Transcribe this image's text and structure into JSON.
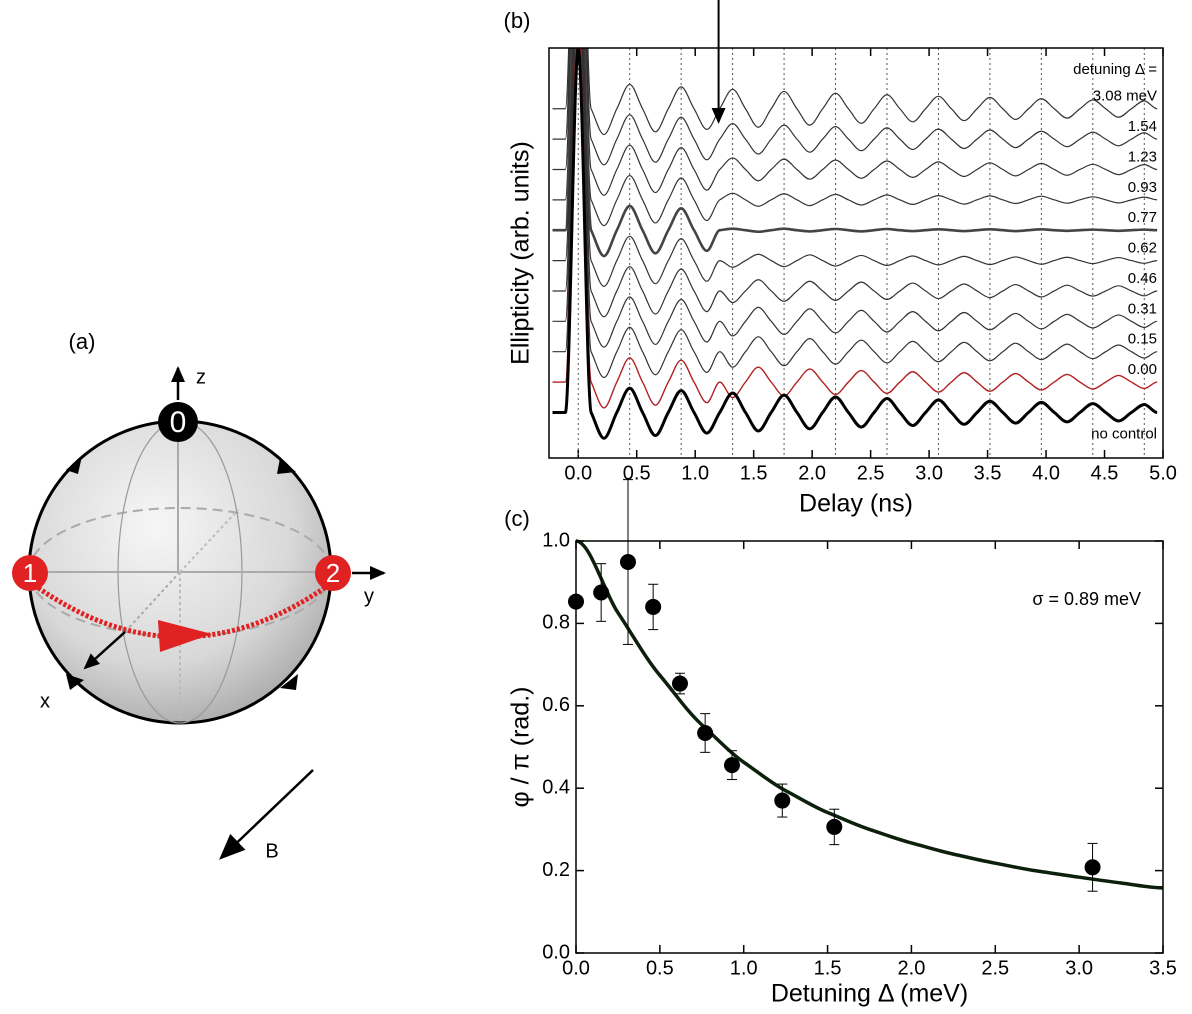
{
  "diagram": {
    "title": "(a)",
    "axes": [
      "z",
      "y",
      "x"
    ],
    "states": [
      "0",
      "1",
      "2"
    ],
    "field": "B"
  },
  "chart_data": [
    {
      "type": "line",
      "title": "(b)",
      "xlabel": "Delay (ns)",
      "ylabel": "Ellipticity (arb. units)",
      "legend_title": "detuning Δ =",
      "x": [
        -0.22,
        -0.11,
        0,
        0.11,
        0.22,
        0.33,
        0.44,
        0.55,
        0.66,
        0.77,
        0.88,
        0.99,
        1.1,
        1.21,
        1.32,
        1.43,
        1.54,
        1.65,
        1.76,
        1.87,
        1.98,
        2.09,
        2.2,
        2.31,
        2.42,
        2.53,
        2.64,
        2.75,
        2.86,
        2.97,
        3.08,
        3.19,
        3.3,
        3.41,
        3.52,
        3.63,
        3.74,
        3.85,
        3.96,
        4.07,
        4.18,
        4.29,
        4.4,
        4.51,
        4.62,
        4.73,
        4.84,
        4.95
      ],
      "series": [
        {
          "name": "3.08 meV",
          "color": "#333333",
          "linewidth": 1.2,
          "values": [
            11,
            11,
            23,
            11,
            10.15,
            11,
            11.8,
            11,
            10.24,
            11,
            11.72,
            11,
            10.32,
            11,
            11.64,
            11,
            10.39,
            11,
            11.57,
            11,
            10.46,
            11,
            11.51,
            11,
            10.52,
            11,
            11.46,
            11,
            10.57,
            11,
            11.41,
            11,
            10.61,
            11,
            11.37,
            11,
            10.65,
            11,
            11.33,
            11,
            10.69,
            11,
            11.29,
            11,
            10.72,
            11,
            11.26,
            11
          ]
        },
        {
          "name": "1.54",
          "color": "#333333",
          "linewidth": 1.2,
          "values": [
            10,
            10,
            22,
            10,
            9.15,
            10,
            10.8,
            10,
            9.24,
            10,
            10.72,
            10,
            9.32,
            10,
            10.51,
            10,
            9.51,
            10,
            10.46,
            10,
            9.57,
            10,
            10.41,
            10,
            9.62,
            10,
            10.37,
            10,
            9.66,
            10,
            10.33,
            10,
            9.69,
            10,
            10.3,
            10,
            9.72,
            10,
            10.26,
            10,
            9.75,
            10,
            10.23,
            10,
            9.78,
            10,
            10.21,
            10
          ]
        },
        {
          "name": "1.23",
          "color": "#333333",
          "linewidth": 1.2,
          "values": [
            9,
            9,
            21,
            9,
            8.15,
            9,
            9.8,
            9,
            8.24,
            9,
            9.72,
            9,
            8.32,
            9,
            9.38,
            9,
            8.63,
            9,
            9.34,
            9,
            8.68,
            9,
            9.31,
            9,
            8.71,
            9,
            9.28,
            9,
            8.74,
            9,
            9.25,
            9,
            8.77,
            9,
            9.22,
            9,
            8.79,
            9,
            9.2,
            9,
            8.81,
            9,
            9.17,
            9,
            8.83,
            9,
            9.16,
            9
          ]
        },
        {
          "name": "0.93",
          "color": "#333333",
          "linewidth": 1.2,
          "values": [
            8,
            8,
            20,
            8,
            7.15,
            8,
            8.8,
            8,
            7.24,
            8,
            8.72,
            8,
            7.32,
            8,
            8.22,
            8,
            7.79,
            8,
            8.2,
            8,
            7.81,
            8,
            8.18,
            8,
            7.83,
            8,
            8.16,
            8,
            7.85,
            8,
            8.14,
            8,
            7.86,
            8,
            8.13,
            8,
            7.88,
            8,
            8.12,
            8,
            7.89,
            8,
            8.1,
            8,
            7.9,
            8,
            8.09,
            8
          ]
        },
        {
          "name": "0.77",
          "color": "#444444",
          "linewidth": 2.6,
          "values": [
            7,
            7,
            19,
            7,
            6.15,
            7,
            7.8,
            7,
            6.24,
            7,
            7.72,
            7,
            6.32,
            7,
            7.05,
            7,
            6.95,
            7,
            7.05,
            7,
            6.96,
            7,
            7.04,
            7,
            6.96,
            7,
            7.04,
            7,
            6.97,
            7,
            7.03,
            7,
            6.97,
            7,
            7.03,
            7,
            6.97,
            7,
            7.03,
            7,
            6.98,
            7,
            7.02,
            7,
            6.98,
            7,
            7.02,
            7
          ]
        },
        {
          "name": "0.62",
          "color": "#333333",
          "linewidth": 1.2,
          "values": [
            6,
            6,
            18,
            6,
            5.15,
            6,
            6.8,
            6,
            5.24,
            6,
            6.72,
            6,
            5.32,
            6,
            5.78,
            6,
            6.21,
            6,
            5.8,
            6,
            6.19,
            6,
            5.82,
            6,
            6.17,
            6,
            5.84,
            6,
            6.15,
            6,
            5.86,
            6,
            6.14,
            6,
            5.87,
            6,
            6.12,
            6,
            5.88,
            6,
            6.11,
            6,
            5.9,
            6,
            6.1,
            6,
            5.91,
            6
          ]
        },
        {
          "name": "0.46",
          "color": "#333333",
          "linewidth": 1.2,
          "values": [
            5,
            5,
            17,
            5,
            4.15,
            5,
            5.8,
            5,
            4.24,
            5,
            5.72,
            5,
            4.32,
            5,
            4.62,
            5,
            5.37,
            5,
            4.66,
            5,
            5.32,
            5,
            4.69,
            5,
            5.29,
            5,
            4.72,
            5,
            5.26,
            5,
            4.75,
            5,
            5.23,
            5,
            4.78,
            5,
            5.21,
            5,
            4.8,
            5,
            5.19,
            5,
            4.83,
            5,
            5.17,
            5,
            4.84,
            5
          ]
        },
        {
          "name": "0.31",
          "color": "#333333",
          "linewidth": 1.2,
          "values": [
            4,
            4,
            16,
            4,
            3.15,
            4,
            4.8,
            4,
            3.24,
            4,
            4.72,
            4,
            3.32,
            4,
            3.52,
            4,
            4.46,
            4,
            3.57,
            4,
            4.41,
            4,
            3.62,
            4,
            4.36,
            4,
            3.65,
            4,
            4.32,
            4,
            3.69,
            4,
            4.29,
            4,
            3.72,
            4,
            4.26,
            4,
            3.75,
            4,
            4.23,
            4,
            3.78,
            4,
            4.21,
            4,
            3.8,
            4
          ]
        },
        {
          "name": "0.15",
          "color": "#333333",
          "linewidth": 1.2,
          "values": [
            3,
            3,
            15,
            3,
            2.15,
            3,
            3.8,
            3,
            2.24,
            3,
            3.72,
            3,
            2.32,
            3,
            2.49,
            3,
            3.49,
            3,
            2.54,
            3,
            3.43,
            3,
            2.59,
            3,
            3.38,
            3,
            2.63,
            3,
            3.34,
            3,
            2.67,
            3,
            3.31,
            3,
            2.7,
            3,
            3.28,
            3,
            2.74,
            3,
            3.25,
            3,
            2.77,
            3,
            3.22,
            3,
            2.79,
            3
          ]
        },
        {
          "name": "0.00",
          "color": "#b22222",
          "linewidth": 1.4,
          "values": [
            2,
            2,
            14,
            2,
            1.15,
            2,
            2.8,
            2,
            1.24,
            2,
            2.72,
            2,
            1.32,
            2,
            1.49,
            2,
            2.49,
            2,
            1.54,
            2,
            2.43,
            2,
            1.59,
            2,
            2.38,
            2,
            1.63,
            2,
            2.34,
            2,
            1.67,
            2,
            2.31,
            2,
            1.7,
            2,
            2.28,
            2,
            1.74,
            2,
            2.25,
            2,
            1.77,
            2,
            2.22,
            2,
            1.79,
            2
          ]
        },
        {
          "name": "no control",
          "color": "#000000",
          "linewidth": 3,
          "values": [
            1,
            1,
            13,
            1,
            0.15,
            1,
            1.8,
            1,
            0.24,
            1,
            1.72,
            1,
            0.32,
            1,
            1.64,
            1,
            0.39,
            1,
            1.57,
            1,
            0.46,
            1,
            1.51,
            1,
            0.52,
            1,
            1.46,
            1,
            0.57,
            1,
            1.41,
            1,
            0.61,
            1,
            1.37,
            1,
            0.65,
            1,
            1.33,
            1,
            0.69,
            1,
            1.29,
            1,
            0.72,
            1,
            1.26,
            1
          ]
        }
      ],
      "xlim": [
        -0.25,
        5.0
      ],
      "ylim": [
        -0.5,
        13
      ],
      "xticks": [
        {
          "value": 0,
          "label": "0.0"
        },
        0.5,
        {
          "value": 1,
          "label": "1.0"
        },
        1.5,
        {
          "value": 2,
          "label": "2.0"
        },
        2.5,
        {
          "value": 3,
          "label": "3.0"
        },
        3.5,
        {
          "value": 4,
          "label": "4.0"
        },
        4.5,
        {
          "value": 5,
          "label": "5.0"
        }
      ],
      "guide_lines_x": [
        0,
        0.44,
        0.88,
        1.32,
        1.76,
        2.2,
        2.64,
        3.08,
        3.52,
        3.96,
        4.4,
        4.84
      ],
      "arrow_x": 1.2
    },
    {
      "type": "scatter",
      "title": "(c)",
      "xlabel": "Detuning Δ (meV)",
      "ylabel": "φ / π (rad.)",
      "annotation": "σ = 0.89 meV",
      "x": [
        0,
        0.15,
        0.31,
        0.46,
        0.62,
        0.77,
        0.93,
        1.23,
        1.54,
        3.08
      ],
      "values": [
        0.853,
        0.875,
        0.949,
        0.84,
        0.654,
        0.534,
        0.456,
        0.37,
        0.306,
        0.208
      ],
      "errors": [
        0,
        0.07,
        0.2,
        0.055,
        0.025,
        0.047,
        0.035,
        0.04,
        0.043,
        0.058
      ],
      "color": "#000000",
      "fit": {
        "color": "#0c200c",
        "x": [
          0,
          0.25,
          0.5,
          0.75,
          1.0,
          1.25,
          1.5,
          1.75,
          2.0,
          2.25,
          2.5,
          2.75,
          3.0,
          3.25,
          3.5
        ],
        "values": [
          1,
          0.826,
          0.674,
          0.554,
          0.463,
          0.394,
          0.341,
          0.3,
          0.267,
          0.24,
          0.218,
          0.199,
          0.184,
          0.17,
          0.158
        ]
      },
      "xlim": [
        0,
        3.5
      ],
      "ylim": [
        0,
        1
      ],
      "xticks": [
        {
          "value": 0,
          "label": "0.0"
        },
        0.5,
        {
          "value": 1,
          "label": "1.0"
        },
        1.5,
        {
          "value": 2,
          "label": "2.0"
        },
        2.5,
        {
          "value": 3,
          "label": "3.0"
        },
        3.5
      ],
      "yticks": [
        {
          "value": 0,
          "label": "0.0"
        },
        0.2,
        0.4,
        0.6,
        0.8,
        {
          "value": 1,
          "label": "1.0"
        }
      ]
    }
  ]
}
